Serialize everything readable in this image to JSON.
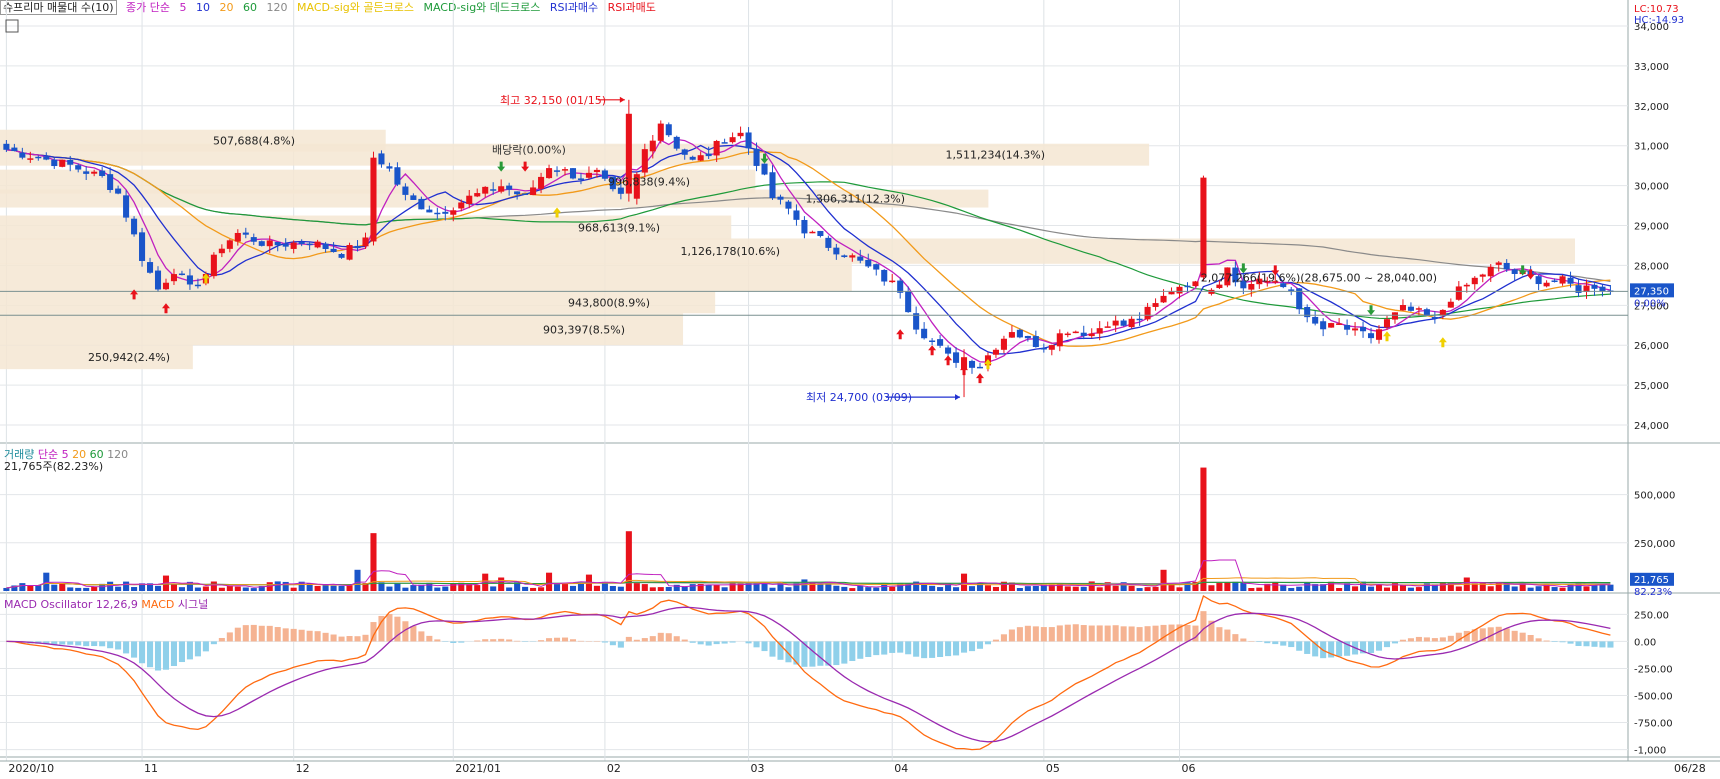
{
  "header": {
    "title": "슈프리마 매물대 수(10)",
    "ma_title": "종가 단순",
    "ma_periods": [
      "5",
      "10",
      "20",
      "60",
      "120"
    ],
    "signals": [
      "MACD-sig와 골든크로스",
      "MACD-sig와 데드크로스",
      "RSI과매수",
      "RSI과매도"
    ],
    "lc_label": "LC:10.73",
    "hc_label": "HC:-14.93"
  },
  "colors": {
    "up": "#e8121b",
    "down": "#1a55c9",
    "ma5": "#c020c0",
    "ma10": "#2030d0",
    "ma20": "#f29a1a",
    "ma60": "#1e9a3a",
    "ma120": "#8a8a8a",
    "profile": "#f5e6d2",
    "macd": "#ff6a10",
    "signal": "#9a2ab0",
    "osc_pos": "#f5b392",
    "osc_neg": "#8fd0ea",
    "current_box": "#1a55c9"
  },
  "price_panel": {
    "y_ticks": [
      "34,000",
      "33,000",
      "32,000",
      "31,000",
      "30,000",
      "29,000",
      "28,000",
      "27,000",
      "26,000",
      "25,000",
      "24,000"
    ],
    "current_price_label": "27,350",
    "current_change_label": "0.00%",
    "high_annotation": "최고 32,150 (01/15)",
    "low_annotation": "최저 24,700 (03/09)",
    "dividend_label": "배당락(0.00%)",
    "volume_profile_labels": [
      "507,688(4.8%)",
      "1,511,234(14.3%)",
      "996,838(9.4%)",
      "1,306,311(12.3%)",
      "968,613(9.1%)",
      "1,126,178(10.6%)",
      "2,077,266(19.6%)(28,675.00 ~ 28,040.00)",
      "943,800(8.9%)",
      "903,397(8.5%)",
      "250,942(2.4%)"
    ]
  },
  "volume_panel": {
    "title": "거래량",
    "ma_title": "단순",
    "ma_periods": [
      "5",
      "20",
      "60",
      "120"
    ],
    "readout": "21,765주(82.23%)",
    "y_ticks": [
      "500,000",
      "250,000"
    ],
    "current_label": "21,765",
    "current_pct_label": "82.23%"
  },
  "macd_panel": {
    "title": "MACD Oscillator 12,26,9",
    "macd_label": "MACD",
    "signal_label": "시그널",
    "y_ticks": [
      "250.00",
      "0.00",
      "-250.00",
      "-500.00",
      "-750.00",
      "-1,000"
    ]
  },
  "x_axis": {
    "labels": [
      "2020/10",
      "11",
      "12",
      "2021/01",
      "02",
      "03",
      "04",
      "05",
      "06",
      "06/28"
    ]
  },
  "chart_data": {
    "type": "candlestick",
    "title": "슈프리마 매물대 수(10)",
    "x_labels": [
      "2020/10",
      "11",
      "12",
      "2021/01",
      "02",
      "03",
      "04",
      "05",
      "06"
    ],
    "anchors": [
      {
        "i": 0,
        "c": 30900
      },
      {
        "i": 4,
        "c": 30700
      },
      {
        "i": 8,
        "c": 30500
      },
      {
        "i": 12,
        "c": 30200
      },
      {
        "i": 14,
        "c": 29800
      },
      {
        "i": 17,
        "c": 28200
      },
      {
        "i": 19,
        "c": 27400
      },
      {
        "i": 21,
        "c": 27900
      },
      {
        "i": 23,
        "c": 27400
      },
      {
        "i": 25,
        "c": 27800
      },
      {
        "i": 27,
        "c": 28500
      },
      {
        "i": 29,
        "c": 28800
      },
      {
        "i": 33,
        "c": 28500
      },
      {
        "i": 38,
        "c": 28600
      },
      {
        "i": 42,
        "c": 28300
      },
      {
        "i": 45,
        "c": 28600
      },
      {
        "i": 46,
        "c": 30800
      },
      {
        "i": 48,
        "c": 30400
      },
      {
        "i": 50,
        "c": 29700
      },
      {
        "i": 54,
        "c": 29300
      },
      {
        "i": 58,
        "c": 29700
      },
      {
        "i": 62,
        "c": 30000
      },
      {
        "i": 65,
        "c": 29700
      },
      {
        "i": 68,
        "c": 30500
      },
      {
        "i": 72,
        "c": 30200
      },
      {
        "i": 74,
        "c": 30300
      },
      {
        "i": 76,
        "c": 29800
      },
      {
        "i": 78,
        "c": 29600
      },
      {
        "i": 80,
        "c": 30900
      },
      {
        "i": 82,
        "c": 31600
      },
      {
        "i": 84,
        "c": 31000
      },
      {
        "i": 86,
        "c": 30600
      },
      {
        "i": 88,
        "c": 30800
      },
      {
        "i": 90,
        "c": 31200
      },
      {
        "i": 92,
        "c": 31300
      },
      {
        "i": 94,
        "c": 30600
      },
      {
        "i": 96,
        "c": 29700
      },
      {
        "i": 98,
        "c": 29400
      },
      {
        "i": 100,
        "c": 28900
      },
      {
        "i": 103,
        "c": 28500
      },
      {
        "i": 106,
        "c": 28200
      },
      {
        "i": 109,
        "c": 27800
      },
      {
        "i": 112,
        "c": 27400
      },
      {
        "i": 114,
        "c": 26500
      },
      {
        "i": 116,
        "c": 26100
      },
      {
        "i": 118,
        "c": 25700
      },
      {
        "i": 120,
        "c": 25600
      },
      {
        "i": 122,
        "c": 25500
      },
      {
        "i": 124,
        "c": 26000
      },
      {
        "i": 126,
        "c": 26400
      },
      {
        "i": 128,
        "c": 26100
      },
      {
        "i": 130,
        "c": 26000
      },
      {
        "i": 133,
        "c": 26400
      },
      {
        "i": 136,
        "c": 26300
      },
      {
        "i": 138,
        "c": 26600
      },
      {
        "i": 140,
        "c": 26500
      },
      {
        "i": 142,
        "c": 26700
      },
      {
        "i": 144,
        "c": 27000
      },
      {
        "i": 146,
        "c": 27400
      },
      {
        "i": 148,
        "c": 27600
      },
      {
        "i": 150,
        "c": 27400
      },
      {
        "i": 152,
        "c": 27600
      },
      {
        "i": 153,
        "c": 28000
      },
      {
        "i": 155,
        "c": 27400
      },
      {
        "i": 157,
        "c": 27700
      },
      {
        "i": 159,
        "c": 27500
      },
      {
        "i": 161,
        "c": 27400
      },
      {
        "i": 163,
        "c": 26600
      },
      {
        "i": 165,
        "c": 26400
      },
      {
        "i": 167,
        "c": 26500
      },
      {
        "i": 169,
        "c": 26300
      },
      {
        "i": 171,
        "c": 26200
      },
      {
        "i": 173,
        "c": 26600
      },
      {
        "i": 175,
        "c": 26900
      },
      {
        "i": 177,
        "c": 26800
      },
      {
        "i": 179,
        "c": 26600
      },
      {
        "i": 181,
        "c": 27200
      },
      {
        "i": 183,
        "c": 27500
      },
      {
        "i": 185,
        "c": 27800
      },
      {
        "i": 187,
        "c": 28000
      },
      {
        "i": 189,
        "c": 27800
      },
      {
        "i": 191,
        "c": 27700
      },
      {
        "i": 193,
        "c": 27600
      },
      {
        "i": 195,
        "c": 27600
      },
      {
        "i": 197,
        "c": 27400
      },
      {
        "i": 199,
        "c": 27500
      },
      {
        "i": 201,
        "c": 27350
      }
    ],
    "total_bars": 202,
    "spikes": [
      {
        "i": 150,
        "o": 27700,
        "c": 30200,
        "h": 30250,
        "l": 27600,
        "vol": 640000
      },
      {
        "i": 78,
        "o": 29800,
        "c": 31800,
        "h": 32150,
        "l": 29600,
        "vol": 310000
      },
      {
        "i": 46,
        "o": 28600,
        "c": 30700,
        "h": 30850,
        "l": 28500,
        "vol": 300000
      },
      {
        "i": 120,
        "o": 25400,
        "c": 25700,
        "h": 25900,
        "l": 24700,
        "vol": 90000
      }
    ],
    "y_min": 23600,
    "y_max": 34200,
    "volume_max": 700000,
    "macd_range": [
      -1050,
      420
    ],
    "volume_profile": [
      {
        "label": "507,688(4.8%)",
        "low": 30850,
        "high": 31400,
        "pct": 4.8
      },
      {
        "label": "1,511,234(14.3%)",
        "low": 30500,
        "high": 31050,
        "pct": 14.3
      },
      {
        "label": "996,838(9.4%)",
        "low": 29800,
        "high": 30400,
        "pct": 9.4
      },
      {
        "label": "1,306,311(12.3%)",
        "low": 29450,
        "high": 29900,
        "pct": 12.3
      },
      {
        "label": "968,613(9.1%)",
        "low": 28650,
        "high": 29250,
        "pct": 9.1
      },
      {
        "label": "2,077,266(19.6%)(28,675.00 ~ 28,040.00)",
        "low": 28040,
        "high": 28675,
        "pct": 19.6
      },
      {
        "label": "1,126,178(10.6%)",
        "low": 27350,
        "high": 28050,
        "pct": 10.6
      },
      {
        "label": "943,800(8.9%)",
        "low": 26800,
        "high": 27350,
        "pct": 8.9
      },
      {
        "label": "903,397(8.5%)",
        "low": 26000,
        "high": 26800,
        "pct": 8.5
      },
      {
        "label": "250,942(2.4%)",
        "low": 25400,
        "high": 26000,
        "pct": 2.4
      }
    ],
    "highest": {
      "value": 32150,
      "date": "01/15"
    },
    "lowest": {
      "value": 24700,
      "date": "03/09"
    },
    "last_price": 27350
  }
}
